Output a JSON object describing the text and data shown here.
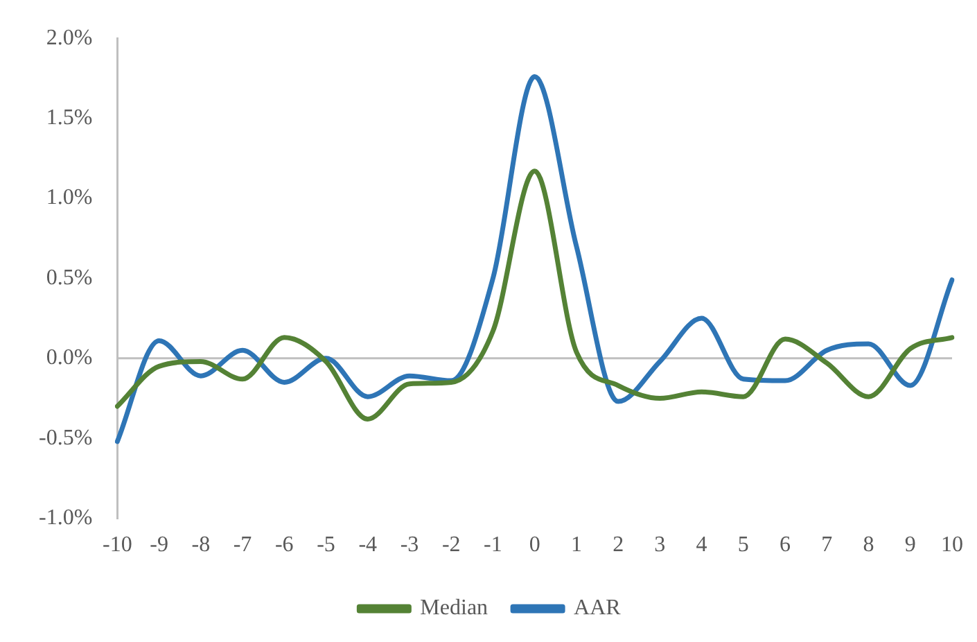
{
  "chart_data": {
    "type": "line",
    "categories": [
      "-10",
      "-9",
      "-8",
      "-7",
      "-6",
      "-5",
      "-4",
      "-3",
      "-2",
      "-1",
      "0",
      "1",
      "2",
      "3",
      "4",
      "5",
      "6",
      "7",
      "8",
      "9",
      "10"
    ],
    "series": [
      {
        "name": "Median",
        "color": "#548235",
        "values": [
          -0.3,
          -0.05,
          -0.02,
          -0.13,
          0.13,
          -0.02,
          -0.38,
          -0.16,
          -0.15,
          0.17,
          1.17,
          0.04,
          -0.17,
          -0.25,
          -0.21,
          -0.24,
          0.12,
          -0.03,
          -0.24,
          0.06,
          0.13
        ]
      },
      {
        "name": "AAR",
        "color": "#2e75b6",
        "values": [
          -0.52,
          0.11,
          -0.11,
          0.05,
          -0.15,
          0.0,
          -0.24,
          -0.11,
          -0.14,
          0.5,
          1.76,
          0.7,
          -0.27,
          -0.02,
          0.25,
          -0.13,
          -0.14,
          0.05,
          0.09,
          -0.17,
          0.49
        ]
      }
    ],
    "ylim": [
      -1.0,
      2.0
    ],
    "yticks": [
      {
        "value": -1.0,
        "label": "-1.0%"
      },
      {
        "value": -0.5,
        "label": "-0.5%"
      },
      {
        "value": 0.0,
        "label": "0.0%"
      },
      {
        "value": 0.5,
        "label": "0.5%"
      },
      {
        "value": 1.0,
        "label": "1.0%"
      },
      {
        "value": 1.5,
        "label": "1.5%"
      },
      {
        "value": 2.0,
        "label": "2.0%"
      }
    ],
    "ref_lines": [
      {
        "axis": "y",
        "value": 0,
        "color": "#bfbfbf"
      }
    ],
    "grid": false,
    "legend": "bottom",
    "marker": "none",
    "line_style": "solid"
  }
}
